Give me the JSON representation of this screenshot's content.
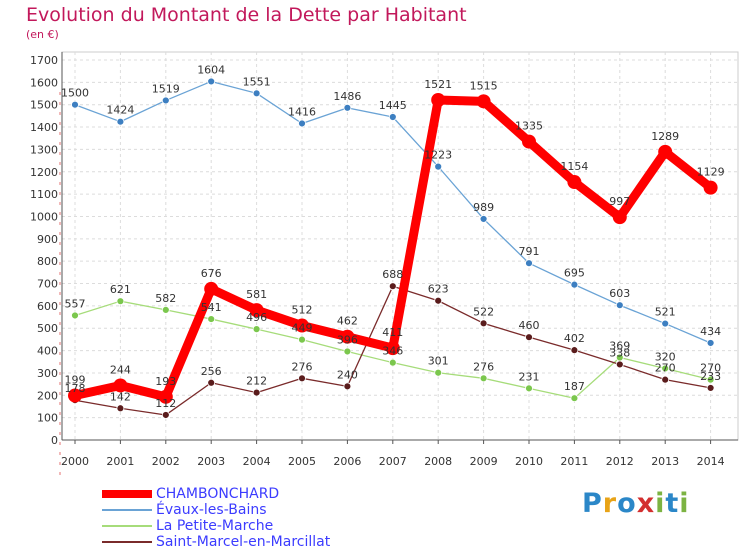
{
  "chart_data": {
    "type": "line",
    "title": "Evolution du Montant de la Dette par Habitant",
    "subtitle": "(en €)",
    "x": [
      2000,
      2001,
      2002,
      2003,
      2004,
      2005,
      2006,
      2007,
      2008,
      2009,
      2010,
      2011,
      2012,
      2013,
      2014
    ],
    "ylim": [
      0,
      1700
    ],
    "yticks": [
      0,
      100,
      200,
      300,
      400,
      500,
      600,
      700,
      800,
      900,
      1000,
      1100,
      1200,
      1300,
      1400,
      1500,
      1600,
      1700
    ],
    "grid": true,
    "legend_position": "bottom-left",
    "series": [
      {
        "name": "Évaux-les-Bains",
        "color": "#6aa3d5",
        "marker": "#3d7fc1",
        "values": [
          1500,
          1424,
          1519,
          1604,
          1551,
          1416,
          1486,
          1445,
          1223,
          989,
          791,
          695,
          603,
          521,
          434
        ],
        "labels": [
          "1500",
          "1424",
          "1519",
          "1604",
          "1551",
          "1416",
          "1486",
          "1445",
          "1223",
          "989",
          "791",
          "695",
          "603",
          "521",
          "434"
        ]
      },
      {
        "name": "La Petite-Marche",
        "color": "#a6dc7a",
        "marker": "#7bc74d",
        "values": [
          557,
          621,
          582,
          541,
          496,
          449,
          396,
          346,
          301,
          276,
          231,
          187,
          369,
          320,
          270
        ],
        "labels": [
          "557",
          "621",
          "582",
          "541",
          "496",
          "449",
          "396",
          "346",
          "301",
          "276",
          "231",
          "187",
          "369",
          "320",
          "270"
        ]
      },
      {
        "name": "Saint-Marcel-en-Marcillat",
        "color": "#7a2b2b",
        "marker": "#5a1c1c",
        "values": [
          178,
          142,
          112,
          256,
          212,
          276,
          240,
          688,
          623,
          522,
          460,
          402,
          338,
          270,
          233
        ],
        "labels": [
          "178",
          "142",
          "112",
          "256",
          "212",
          "276",
          "240",
          "688",
          "623",
          "522",
          "460",
          "402",
          "338",
          "270",
          "233"
        ]
      },
      {
        "name": "CHAMBONCHARD",
        "color": "#ff0000",
        "marker": "#ff0000",
        "values": [
          199,
          244,
          193,
          676,
          581,
          512,
          462,
          411,
          1521,
          1515,
          1335,
          1154,
          997,
          1289,
          1129
        ],
        "labels": [
          "199",
          "244",
          "193",
          "676",
          "581",
          "512",
          "462",
          "411",
          "1521",
          "1515",
          "1335",
          "1154",
          "997",
          "1289",
          "1129"
        ]
      }
    ]
  },
  "legend": {
    "items": [
      {
        "label": "CHAMBONCHARD",
        "color": "#ff0000"
      },
      {
        "label": "Évaux-les-Bains",
        "color": "#6aa3d5"
      },
      {
        "label": "La Petite-Marche",
        "color": "#a6dc7a"
      },
      {
        "label": "Saint-Marcel-en-Marcillat",
        "color": "#7a2b2b"
      }
    ]
  },
  "logo": {
    "p": "P",
    "r": "r",
    "o": "o",
    "x": "x",
    "i": "i",
    "t": "t",
    "i2": "i"
  }
}
